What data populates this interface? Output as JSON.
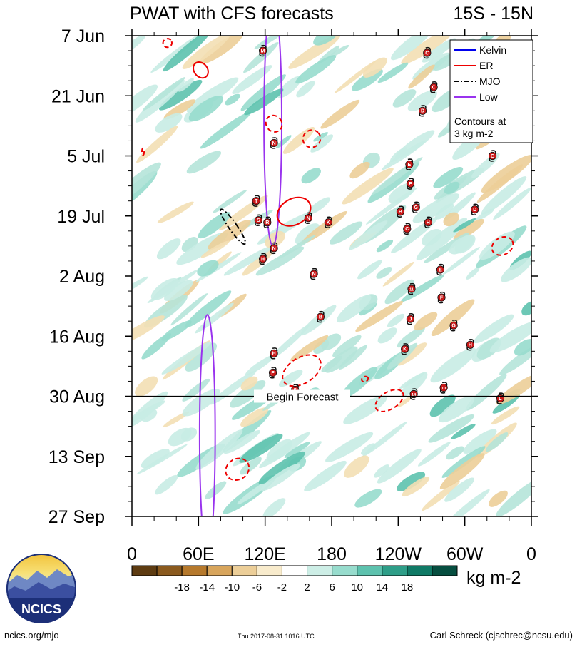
{
  "chart_data": {
    "type": "heatmap",
    "title": "PWAT with CFS forecasts",
    "subtitle": "15S - 15N",
    "x_tick_labels": [
      "0",
      "60E",
      "120E",
      "180",
      "120W",
      "60W",
      "0"
    ],
    "x_ticks_deg": [
      0,
      60,
      120,
      180,
      240,
      300,
      360
    ],
    "x_range_deg": [
      0,
      360
    ],
    "y_tick_labels": [
      "7 Jun",
      "21 Jun",
      "5 Jul",
      "19 Jul",
      "2 Aug",
      "16 Aug",
      "30 Aug",
      "13 Sep",
      "27 Sep"
    ],
    "y_ticks_day": [
      0,
      14,
      28,
      42,
      56,
      70,
      84,
      98,
      112
    ],
    "y_range_day": [
      0,
      112
    ],
    "forecast_day": 84,
    "forecast_label": "Begin Forecast",
    "legend": {
      "position": "top-right",
      "items": [
        {
          "label": "Kelvin",
          "color": "#0000ee",
          "dash": "solid"
        },
        {
          "label": "ER",
          "color": "#ee0000",
          "dash": "solid"
        },
        {
          "label": "MJO",
          "color": "#000000",
          "dash": "dashdot"
        },
        {
          "label": "Low",
          "color": "#9933ee",
          "dash": "solid"
        }
      ],
      "note_line1": "Contours at",
      "note_line2": "3 kg m-2"
    },
    "colorbar": {
      "unit": "kg m-2",
      "labels": [
        "-18",
        "-14",
        "-10",
        "-6",
        "-2",
        "2",
        "6",
        "10",
        "14",
        "18"
      ],
      "colors": [
        "#5e3c12",
        "#8b5a1e",
        "#b6792c",
        "#d8a55c",
        "#ecce98",
        "#f8ebcc",
        "#ffffff",
        "#cdeee6",
        "#97dccd",
        "#5dc2ae",
        "#2e9e88",
        "#107a66",
        "#064e40"
      ]
    },
    "contours": [
      {
        "wave": "Low",
        "style": "solid",
        "lon": 127,
        "day": 20,
        "lon_radius": 8,
        "day_radius": 29,
        "tilt": 0
      },
      {
        "wave": "Low",
        "style": "solid",
        "lon": 68,
        "day": 93,
        "lon_radius": 7,
        "day_radius": 28,
        "tilt": 0
      },
      {
        "wave": "ER",
        "style": "solid",
        "lon": 62,
        "day": 8,
        "lon_radius": 6,
        "day_radius": 2,
        "tilt": -38
      },
      {
        "wave": "ER",
        "style": "solid",
        "lon": 146,
        "day": 41,
        "lon_radius": 16,
        "day_radius": 3,
        "tilt": -30
      },
      {
        "wave": "ER",
        "style": "dashed",
        "lon": 32,
        "day": 1.7,
        "lon_radius": 4,
        "day_radius": 1,
        "tilt": -20
      },
      {
        "wave": "ER",
        "style": "dashed",
        "lon": 128,
        "day": 20.5,
        "lon_radius": 7,
        "day_radius": 2,
        "tilt": -40
      },
      {
        "wave": "ER",
        "style": "dashed",
        "lon": 162,
        "day": 24,
        "lon_radius": 8,
        "day_radius": 2,
        "tilt": -42
      },
      {
        "wave": "ER",
        "style": "dashed",
        "lon": 153,
        "day": 78,
        "lon_radius": 19,
        "day_radius": 3,
        "tilt": -32
      },
      {
        "wave": "ER",
        "style": "dashed",
        "lon": 232,
        "day": 85,
        "lon_radius": 14,
        "day_radius": 2,
        "tilt": -32
      },
      {
        "wave": "ER",
        "style": "dashed",
        "lon": 334,
        "day": 49,
        "lon_radius": 10,
        "day_radius": 2,
        "tilt": -28
      },
      {
        "wave": "ER",
        "style": "dashed",
        "lon": 95,
        "day": 101,
        "lon_radius": 11,
        "day_radius": 2.4,
        "tilt": -32
      },
      {
        "wave": "ER",
        "style": "dashed",
        "lon": 210,
        "day": 80,
        "lon_radius": 3,
        "day_radius": 0.6,
        "tilt": -25
      },
      {
        "wave": "ER",
        "style": "dashed",
        "lon": 10,
        "day": 27,
        "lon_radius": 1,
        "day_radius": 0.8,
        "tilt": 0
      },
      {
        "wave": "MJO",
        "style": "dashdot",
        "lon": 91,
        "day": 44.5,
        "lon_radius": 3.6,
        "day_radius": 4.9,
        "tilt": -35
      }
    ],
    "storms": [
      {
        "label": "M",
        "lon": 118,
        "day": 3.5
      },
      {
        "label": "C",
        "lon": 266,
        "day": 4
      },
      {
        "label": "C",
        "lon": 272,
        "day": 12
      },
      {
        "label": "D",
        "lon": 262,
        "day": 17.5
      },
      {
        "label": "N",
        "lon": 128,
        "day": 25
      },
      {
        "label": "G",
        "lon": 325,
        "day": 28
      },
      {
        "label": "E",
        "lon": 250,
        "day": 30
      },
      {
        "label": "F",
        "lon": 251,
        "day": 34.5
      },
      {
        "label": "T",
        "lon": 112,
        "day": 38.5
      },
      {
        "label": "G",
        "lon": 256,
        "day": 40
      },
      {
        "label": "B",
        "lon": 242,
        "day": 41
      },
      {
        "label": "D",
        "lon": 309,
        "day": 40.5
      },
      {
        "label": "S",
        "lon": 114,
        "day": 43
      },
      {
        "label": "R",
        "lon": 122,
        "day": 43.5
      },
      {
        "label": "N",
        "lon": 159,
        "day": 42.5
      },
      {
        "label": "K",
        "lon": 177,
        "day": 43.5
      },
      {
        "label": "H",
        "lon": 267,
        "day": 43.5
      },
      {
        "label": "C",
        "lon": 248,
        "day": 45
      },
      {
        "label": "N",
        "lon": 128,
        "day": 49.5
      },
      {
        "label": "H",
        "lon": 118,
        "day": 52
      },
      {
        "label": "N",
        "lon": 164,
        "day": 55.5
      },
      {
        "label": "E",
        "lon": 278,
        "day": 54.5
      },
      {
        "label": "11",
        "lon": 252,
        "day": 59
      },
      {
        "label": "F",
        "lon": 279,
        "day": 61
      },
      {
        "label": "B",
        "lon": 170,
        "day": 65.5
      },
      {
        "label": "J",
        "lon": 251,
        "day": 66
      },
      {
        "label": "G",
        "lon": 290,
        "day": 67.5
      },
      {
        "label": "H",
        "lon": 305,
        "day": 72
      },
      {
        "label": "K",
        "lon": 246,
        "day": 73
      },
      {
        "label": "H",
        "lon": 128,
        "day": 74
      },
      {
        "label": "F",
        "lon": 127,
        "day": 78.5
      },
      {
        "label": "10",
        "lon": 281,
        "day": 82
      },
      {
        "label": "S",
        "lon": 147,
        "day": 82.5
      },
      {
        "label": "14",
        "lon": 254,
        "day": 83.5
      },
      {
        "label": "L",
        "lon": 332,
        "day": 84.5
      }
    ]
  },
  "footer": {
    "logo_text": "NCICS",
    "left": "ncics.org/mjo",
    "middle": "Thu 2017-08-31 1016 UTC",
    "right": "Carl Schreck (cjschrec@ncsu.edu)"
  }
}
